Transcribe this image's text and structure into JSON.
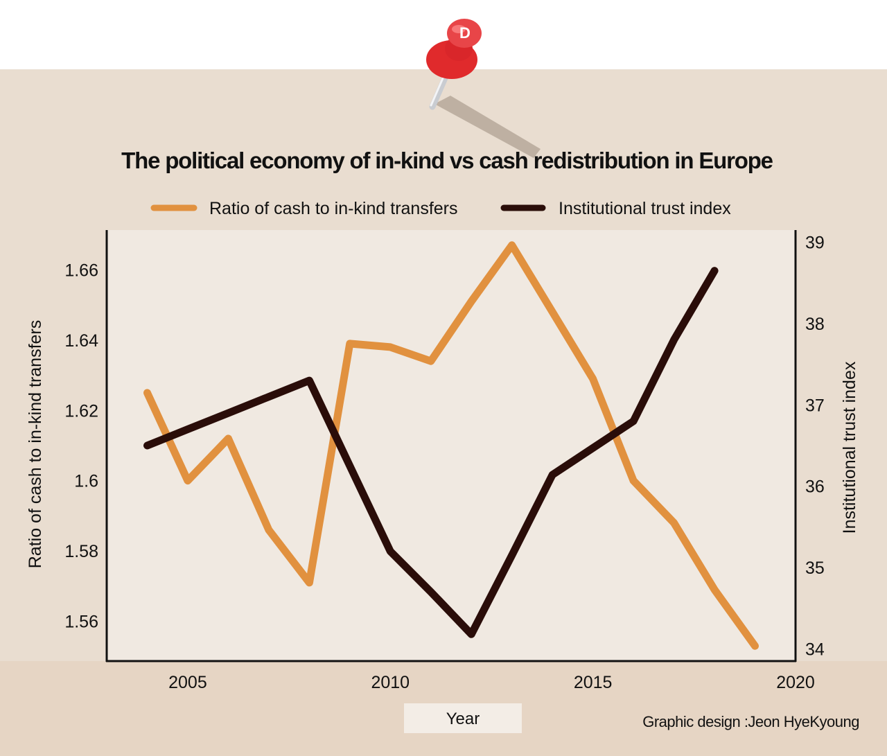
{
  "credit": "Graphic design :Jeon HyeKyoung",
  "pin_letter": "D",
  "colors": {
    "background": "#e9ddd0",
    "plot_fill": "#f0e9e1",
    "bottom_band": "#e6d5c4",
    "cash_line": "#e1913f",
    "trust_line": "#2a0d09",
    "pin": "#e02a2c"
  },
  "chart_data": {
    "type": "line",
    "title": "The political economy of in-kind vs cash redistribution in Europe",
    "xlabel": "Year",
    "ylabel_left": "Ratio of cash to in-kind transfers",
    "ylabel_right": "Institutional trust index",
    "xlim": [
      2003,
      2020
    ],
    "ylim_left": [
      1.5487,
      1.6713
    ],
    "ylim_right": [
      33.85,
      39.15
    ],
    "xticks": [
      2005,
      2010,
      2015,
      2020
    ],
    "yticks_left": [
      1.56,
      1.58,
      1.6,
      1.62,
      1.64,
      1.66
    ],
    "ytick_labels_left": [
      "1.56",
      "1.58",
      "1.6",
      "1.62",
      "1.64",
      "1.66"
    ],
    "yticks_right": [
      34,
      35,
      36,
      37,
      38,
      39
    ],
    "legend_position": "top",
    "series": [
      {
        "name": "Ratio of cash to in-kind transfers",
        "axis": "left",
        "x": [
          2004,
          2005,
          2006,
          2007,
          2008,
          2009,
          2010,
          2011,
          2012,
          2013,
          2014,
          2015,
          2016,
          2017,
          2018,
          2019
        ],
        "values": [
          1.625,
          1.6,
          1.612,
          1.586,
          1.571,
          1.639,
          1.638,
          1.634,
          1.651,
          1.667,
          1.648,
          1.629,
          1.6,
          1.588,
          1.569,
          1.553
        ]
      },
      {
        "name": "Institutional trust index",
        "axis": "right",
        "x": [
          2004,
          2005,
          2006,
          2007,
          2008,
          2009,
          2010,
          2011,
          2012,
          2013,
          2014,
          2015,
          2016,
          2017,
          2018
        ],
        "values": [
          36.5,
          36.7,
          36.9,
          37.1,
          37.3,
          36.25,
          35.2,
          34.7,
          34.18,
          35.15,
          36.14,
          36.47,
          36.8,
          37.8,
          38.65
        ]
      }
    ]
  }
}
